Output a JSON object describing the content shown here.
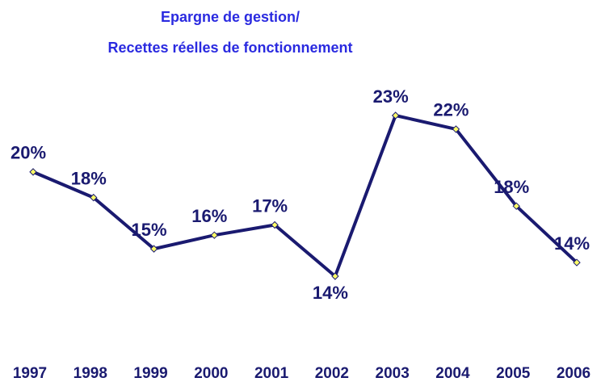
{
  "chart_data": {
    "type": "line",
    "title": [
      "Epargne de gestion/",
      "Recettes réelles de fonctionnement"
    ],
    "categories": [
      "1997",
      "1998",
      "1999",
      "2000",
      "2001",
      "2002",
      "2003",
      "2004",
      "2005",
      "2006"
    ],
    "series": [
      {
        "name": "Epargne de gestion/Recettes réelles de fonctionnement",
        "color": "#1a1a70",
        "values": [
          19.7,
          18.2,
          15.2,
          16.0,
          16.6,
          13.6,
          23.0,
          22.2,
          17.7,
          14.4
        ],
        "value_labels": [
          "20%",
          "18%",
          "15%",
          "16%",
          "17%",
          "14%",
          "23%",
          "22%",
          "18%",
          "14%"
        ]
      }
    ],
    "marker_color": "#ffff66"
  }
}
